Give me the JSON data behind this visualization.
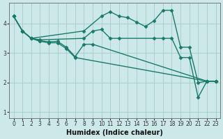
{
  "xlabel": "Humidex (Indice chaleur)",
  "bg_color": "#cce8e8",
  "line_color": "#1a7a6a",
  "grid_color": "#aacfcf",
  "xlim": [
    -0.5,
    23.5
  ],
  "ylim": [
    0.8,
    4.7
  ],
  "yticks": [
    1,
    2,
    3,
    4
  ],
  "xticks": [
    0,
    1,
    2,
    3,
    4,
    5,
    6,
    7,
    8,
    9,
    10,
    11,
    12,
    13,
    14,
    15,
    16,
    17,
    18,
    19,
    20,
    21,
    22,
    23
  ],
  "lines": [
    {
      "x": [
        0,
        1,
        2,
        8,
        10,
        11,
        12,
        13,
        14,
        15,
        16,
        17,
        18,
        19,
        20,
        21,
        22,
        23
      ],
      "y": [
        4.25,
        3.75,
        3.5,
        3.75,
        4.25,
        4.4,
        4.25,
        4.2,
        4.05,
        3.9,
        4.1,
        4.45,
        4.45,
        3.2,
        3.2,
        2.0,
        2.05,
        2.05
      ]
    },
    {
      "x": [
        0,
        1,
        2,
        3,
        8,
        9,
        10,
        11,
        12,
        16,
        17,
        18,
        19,
        20,
        21,
        22,
        23
      ],
      "y": [
        4.25,
        3.75,
        3.5,
        3.45,
        3.5,
        3.75,
        3.8,
        3.5,
        3.5,
        3.5,
        3.5,
        3.5,
        2.85,
        2.85,
        1.5,
        2.05,
        2.05
      ]
    },
    {
      "x": [
        0,
        1,
        2,
        3,
        4,
        5,
        6,
        7,
        8,
        9,
        22,
        23
      ],
      "y": [
        4.25,
        3.75,
        3.5,
        3.42,
        3.38,
        3.4,
        3.2,
        2.88,
        3.3,
        3.3,
        2.05,
        2.05
      ]
    },
    {
      "x": [
        0,
        1,
        2,
        3,
        4,
        5,
        6,
        7,
        22,
        23
      ],
      "y": [
        4.25,
        3.75,
        3.5,
        3.4,
        3.35,
        3.35,
        3.15,
        2.85,
        2.05,
        2.05
      ]
    }
  ],
  "marker": "D",
  "marker_size": 2.5,
  "linewidth": 1.0,
  "xlabel_fontsize": 7,
  "tick_fontsize": 5.5
}
